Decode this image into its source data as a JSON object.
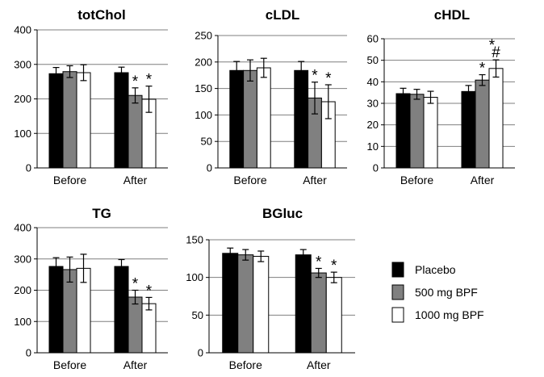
{
  "colors": {
    "placebo": "#000000",
    "bpf500": "#808080",
    "bpf1000": "#ffffff",
    "grid": "#7f7f7f",
    "axis": "#000000"
  },
  "legend": [
    {
      "label": "Placebo",
      "color": "#000000"
    },
    {
      "label": "500 mg BPF",
      "color": "#808080"
    },
    {
      "label": "1000 mg BPF",
      "color": "#ffffff"
    }
  ],
  "chart_data": [
    {
      "type": "bar",
      "title": "totChol",
      "categories": [
        "Before",
        "After"
      ],
      "ylim": [
        0,
        400
      ],
      "yticks": [
        0,
        100,
        200,
        300,
        400
      ],
      "grid": true,
      "series": [
        {
          "name": "Placebo",
          "values": [
            273,
            276
          ],
          "errors": [
            18,
            16
          ]
        },
        {
          "name": "500 mg BPF",
          "values": [
            279,
            210
          ],
          "errors": [
            17,
            22
          ]
        },
        {
          "name": "1000 mg BPF",
          "values": [
            276,
            199
          ],
          "errors": [
            23,
            38
          ]
        }
      ],
      "annotations": [
        {
          "category": "After",
          "series": "500 mg BPF",
          "text": "*"
        },
        {
          "category": "After",
          "series": "1000 mg BPF",
          "text": "*"
        }
      ]
    },
    {
      "type": "bar",
      "title": "cLDL",
      "categories": [
        "Before",
        "After"
      ],
      "ylim": [
        0,
        250
      ],
      "yticks": [
        0,
        50,
        100,
        150,
        200,
        250
      ],
      "grid": true,
      "series": [
        {
          "name": "Placebo",
          "values": [
            184,
            184
          ],
          "errors": [
            17,
            17
          ]
        },
        {
          "name": "500 mg BPF",
          "values": [
            184,
            132
          ],
          "errors": [
            20,
            30
          ]
        },
        {
          "name": "1000 mg BPF",
          "values": [
            189,
            125
          ],
          "errors": [
            18,
            32
          ]
        }
      ],
      "annotations": [
        {
          "category": "After",
          "series": "500 mg BPF",
          "text": "*"
        },
        {
          "category": "After",
          "series": "1000 mg BPF",
          "text": "*"
        }
      ]
    },
    {
      "type": "bar",
      "title": "cHDL",
      "categories": [
        "Before",
        "After"
      ],
      "ylim": [
        0,
        60
      ],
      "yticks": [
        0,
        10,
        20,
        30,
        40,
        50,
        60
      ],
      "grid": true,
      "series": [
        {
          "name": "Placebo",
          "values": [
            34.5,
            35.5
          ],
          "errors": [
            2.5,
            2.8
          ]
        },
        {
          "name": "500 mg BPF",
          "values": [
            34.2,
            40.8
          ],
          "errors": [
            2.3,
            2.5
          ]
        },
        {
          "name": "1000 mg BPF",
          "values": [
            32.8,
            46.2
          ],
          "errors": [
            2.8,
            4.0
          ]
        }
      ],
      "annotations": [
        {
          "category": "After",
          "series": "500 mg BPF",
          "text": "*"
        },
        {
          "category": "After",
          "series": "1000 mg BPF",
          "text": "*#"
        }
      ]
    },
    {
      "type": "bar",
      "title": "TG",
      "categories": [
        "Before",
        "After"
      ],
      "ylim": [
        0,
        400
      ],
      "yticks": [
        0,
        100,
        200,
        300,
        400
      ],
      "grid": true,
      "series": [
        {
          "name": "Placebo",
          "values": [
            276,
            276
          ],
          "errors": [
            28,
            22
          ]
        },
        {
          "name": "500 mg BPF",
          "values": [
            266,
            178
          ],
          "errors": [
            40,
            22
          ]
        },
        {
          "name": "1000 mg BPF",
          "values": [
            270,
            157
          ],
          "errors": [
            45,
            20
          ]
        }
      ],
      "annotations": [
        {
          "category": "After",
          "series": "500 mg BPF",
          "text": "*"
        },
        {
          "category": "After",
          "series": "1000 mg BPF",
          "text": "*"
        }
      ]
    },
    {
      "type": "bar",
      "title": "BGluc",
      "categories": [
        "Before",
        "After"
      ],
      "ylim": [
        0,
        150
      ],
      "yticks": [
        0,
        50,
        100,
        150
      ],
      "grid": true,
      "series": [
        {
          "name": "Placebo",
          "values": [
            132,
            130
          ],
          "errors": [
            7,
            7
          ]
        },
        {
          "name": "500 mg BPF",
          "values": [
            130,
            106
          ],
          "errors": [
            7,
            6
          ]
        },
        {
          "name": "1000 mg BPF",
          "values": [
            128,
            100
          ],
          "errors": [
            7,
            7
          ]
        }
      ],
      "annotations": [
        {
          "category": "After",
          "series": "500 mg BPF",
          "text": "*"
        },
        {
          "category": "After",
          "series": "1000 mg BPF",
          "text": "*"
        }
      ]
    }
  ]
}
